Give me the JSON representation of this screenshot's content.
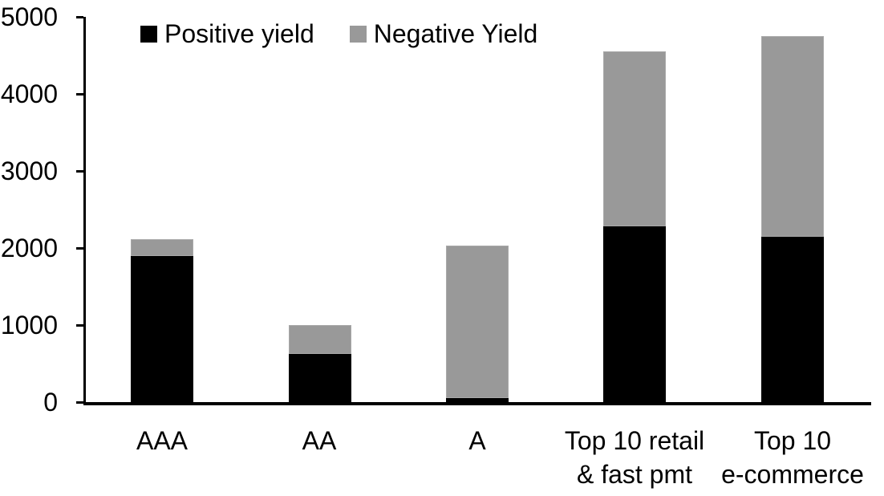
{
  "chart_data": {
    "type": "bar",
    "stacked": true,
    "title": "",
    "xlabel": "",
    "ylabel": "",
    "categories": [
      "AAA",
      "AA",
      "A",
      "Top 10 retail\n& fast pmt",
      "Top 10\ne-commerce"
    ],
    "series": [
      {
        "name": "Positive yield",
        "color": "#000000",
        "values": [
          1900,
          620,
          50,
          2280,
          2150
        ]
      },
      {
        "name": "Negative Yield",
        "color": "#999999",
        "values": [
          210,
          380,
          1980,
          2270,
          2600
        ]
      }
    ],
    "totals": [
      2110,
      1000,
      2030,
      4550,
      4750
    ],
    "ylim": [
      0,
      5000
    ],
    "yticks": [
      0,
      1000,
      2000,
      3000,
      4000,
      5000
    ],
    "legend_position": "top",
    "grid": false,
    "colors": {
      "positive_yield": "#000000",
      "negative_yield": "#999999",
      "axis": "#000000",
      "background": "#ffffff",
      "text": "#000000"
    }
  }
}
